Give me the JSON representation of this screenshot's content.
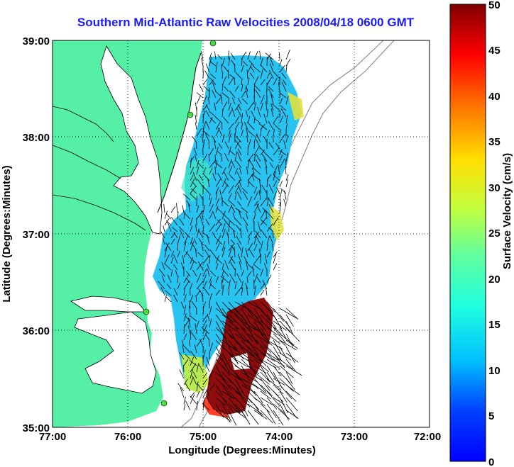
{
  "title": "Southern Mid-Atlantic Raw Velocities 2008/04/18 0600 GMT",
  "x_axis": {
    "label": "Longitude (Degrees:Minutes)",
    "ticks": [
      "77:00",
      "76:00",
      "75:00",
      "74:00",
      "73:00",
      "72:00"
    ]
  },
  "y_axis": {
    "label": "Latitude (Degrees:Minutes)",
    "ticks": [
      "39:00",
      "38:00",
      "37:00",
      "36:00",
      "35:00"
    ]
  },
  "colorbar": {
    "label": "Surface Velocity (cm/s)",
    "ticks": [
      "50",
      "45",
      "40",
      "35",
      "30",
      "25",
      "20",
      "15",
      "10",
      "5",
      "0"
    ],
    "range": [
      0,
      50
    ],
    "colormap": "jet"
  },
  "colors": {
    "land": "#55f0a5",
    "title": "#1a1aff",
    "background": "#ffffff"
  },
  "map": {
    "lon_range": [
      -77,
      -72
    ],
    "lat_range": [
      35,
      39
    ],
    "grid": "dotted"
  }
}
